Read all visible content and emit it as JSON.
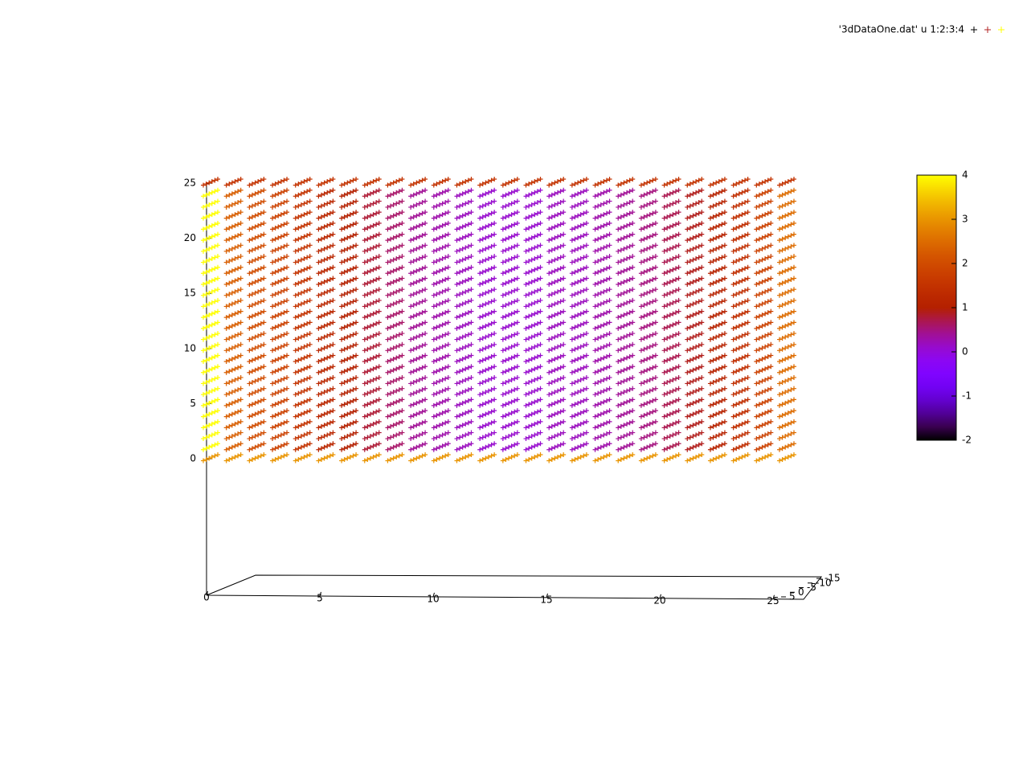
{
  "chart_data": {
    "type": "scatter3d",
    "legend": "'3dDataOne.dat' u 1:2:3:4",
    "legend_colors": [
      "#000000",
      "#b22222",
      "#ffff00"
    ],
    "xlim": [
      0,
      25
    ],
    "xticks": [
      0,
      5,
      10,
      15,
      20,
      25
    ],
    "ylim": [
      5,
      -15
    ],
    "yticks": [
      5,
      0,
      -5,
      -10,
      -15
    ],
    "zlim": [
      0,
      25
    ],
    "zticks": [
      0,
      5,
      10,
      15,
      20,
      25
    ],
    "cblim": [
      -2,
      4
    ],
    "cbticks": [
      -2,
      -1,
      0,
      1,
      2,
      3,
      4
    ],
    "palette": "rgbformulae 7,5,15",
    "values": [
      [
        3,
        3,
        3,
        3,
        3,
        3,
        3,
        3,
        3,
        3,
        3,
        3,
        3,
        3,
        3,
        3,
        3,
        3,
        3,
        3,
        3,
        3,
        3,
        3,
        3,
        3
      ],
      [
        4,
        2.3,
        2,
        1.8,
        1.5,
        1.2,
        1,
        0.8,
        0.6,
        0.4,
        0.3,
        0.2,
        0.1,
        0.1,
        0.1,
        0.2,
        0.2,
        0.3,
        0.4,
        0.5,
        0.7,
        0.9,
        1.1,
        1.4,
        1.8,
        2.5
      ],
      [
        4,
        2.3,
        2,
        1.8,
        1.5,
        1.2,
        1,
        0.8,
        0.6,
        0.4,
        0.3,
        0.2,
        0.1,
        0.1,
        0.1,
        0.2,
        0.2,
        0.3,
        0.4,
        0.5,
        0.7,
        0.9,
        1.1,
        1.4,
        1.8,
        2.5
      ],
      [
        4,
        2.3,
        2,
        1.8,
        1.5,
        1.2,
        1,
        0.8,
        0.6,
        0.4,
        0.3,
        0.2,
        0.1,
        0.1,
        0.1,
        0.2,
        0.2,
        0.3,
        0.4,
        0.5,
        0.7,
        0.9,
        1.1,
        1.4,
        1.8,
        2.5
      ],
      [
        4,
        2.3,
        2,
        1.8,
        1.5,
        1.2,
        1,
        0.8,
        0.6,
        0.4,
        0.3,
        0.2,
        0.1,
        0.1,
        0.1,
        0.2,
        0.2,
        0.3,
        0.4,
        0.5,
        0.7,
        0.9,
        1.1,
        1.4,
        1.8,
        2.5
      ],
      [
        4,
        2.3,
        2,
        1.8,
        1.5,
        1.2,
        1,
        0.8,
        0.6,
        0.4,
        0.3,
        0.2,
        0.1,
        0.1,
        0.1,
        0.2,
        0.2,
        0.3,
        0.4,
        0.5,
        0.7,
        0.9,
        1.1,
        1.4,
        1.8,
        2.5
      ],
      [
        4,
        2.3,
        2,
        1.8,
        1.5,
        1.2,
        1,
        0.8,
        0.6,
        0.4,
        0.3,
        0.2,
        0.1,
        0.1,
        0.1,
        0.2,
        0.2,
        0.3,
        0.4,
        0.5,
        0.7,
        0.9,
        1.1,
        1.4,
        1.8,
        2.5
      ],
      [
        4,
        2.3,
        2,
        1.8,
        1.5,
        1.2,
        1,
        0.8,
        0.6,
        0.4,
        0.3,
        0.2,
        0.1,
        0.1,
        0.1,
        0.2,
        0.2,
        0.3,
        0.4,
        0.5,
        0.7,
        0.9,
        1.1,
        1.4,
        1.8,
        2.5
      ],
      [
        4,
        2.3,
        2,
        1.8,
        1.5,
        1.2,
        1,
        0.8,
        0.6,
        0.4,
        0.3,
        0.2,
        0.1,
        0.1,
        0.1,
        0.2,
        0.2,
        0.3,
        0.4,
        0.5,
        0.7,
        0.9,
        1.1,
        1.4,
        1.8,
        2.5
      ],
      [
        4,
        2.3,
        2,
        1.8,
        1.5,
        1.2,
        1,
        0.8,
        0.6,
        0.4,
        0.3,
        0.2,
        0.1,
        0.1,
        0.1,
        0.2,
        0.2,
        0.3,
        0.4,
        0.5,
        0.7,
        0.9,
        1.1,
        1.4,
        1.8,
        2.5
      ],
      [
        4,
        2.3,
        2,
        1.8,
        1.5,
        1.2,
        1,
        0.8,
        0.6,
        0.4,
        0.3,
        0.2,
        0.1,
        0.1,
        0.1,
        0.2,
        0.2,
        0.3,
        0.4,
        0.5,
        0.7,
        0.9,
        1.1,
        1.4,
        1.8,
        2.5
      ],
      [
        4,
        2.3,
        2,
        1.8,
        1.5,
        1.2,
        1,
        0.8,
        0.6,
        0.4,
        0.3,
        0.2,
        0.1,
        0.1,
        0.1,
        0.2,
        0.2,
        0.3,
        0.4,
        0.5,
        0.7,
        0.9,
        1.1,
        1.4,
        1.8,
        2.5
      ],
      [
        4,
        2.3,
        2,
        1.8,
        1.5,
        1.2,
        1,
        0.8,
        0.6,
        0.4,
        0.3,
        0.2,
        0.1,
        0.1,
        0.1,
        0.2,
        0.2,
        0.3,
        0.4,
        0.5,
        0.7,
        0.9,
        1.1,
        1.4,
        1.8,
        2.5
      ],
      [
        4,
        2.3,
        2,
        1.8,
        1.5,
        1.2,
        1,
        0.8,
        0.6,
        0.4,
        0.3,
        0.2,
        0.1,
        0.1,
        0.1,
        0.2,
        0.2,
        0.3,
        0.4,
        0.5,
        0.7,
        0.9,
        1.1,
        1.4,
        1.8,
        2.5
      ],
      [
        4,
        2.3,
        2,
        1.8,
        1.5,
        1.2,
        1,
        0.8,
        0.6,
        0.4,
        0.3,
        0.2,
        0.1,
        0.1,
        0.1,
        0.2,
        0.2,
        0.3,
        0.4,
        0.5,
        0.7,
        0.9,
        1.1,
        1.4,
        1.8,
        2.5
      ],
      [
        4,
        2.3,
        2,
        1.8,
        1.5,
        1.2,
        1,
        0.8,
        0.6,
        0.4,
        0.3,
        0.2,
        0.1,
        0.1,
        0.1,
        0.2,
        0.2,
        0.3,
        0.4,
        0.5,
        0.7,
        0.9,
        1.1,
        1.4,
        1.8,
        2.5
      ],
      [
        4,
        2.3,
        2,
        1.8,
        1.5,
        1.2,
        1,
        0.8,
        0.6,
        0.4,
        0.3,
        0.2,
        0.1,
        0.1,
        0.1,
        0.2,
        0.2,
        0.3,
        0.4,
        0.5,
        0.7,
        0.9,
        1.1,
        1.4,
        1.8,
        2.5
      ],
      [
        4,
        2.3,
        2,
        1.8,
        1.5,
        1.2,
        1,
        0.8,
        0.6,
        0.4,
        0.3,
        0.2,
        0.1,
        0.1,
        0.1,
        0.2,
        0.2,
        0.3,
        0.4,
        0.5,
        0.7,
        0.9,
        1.1,
        1.4,
        1.8,
        2.5
      ],
      [
        4,
        2.3,
        2,
        1.8,
        1.5,
        1.2,
        1,
        0.8,
        0.6,
        0.4,
        0.3,
        0.2,
        0.1,
        0.1,
        0.1,
        0.2,
        0.2,
        0.3,
        0.4,
        0.5,
        0.7,
        0.9,
        1.1,
        1.4,
        1.8,
        2.5
      ],
      [
        4,
        2.3,
        2,
        1.8,
        1.5,
        1.2,
        1,
        0.8,
        0.6,
        0.4,
        0.3,
        0.2,
        0.1,
        0.1,
        0.1,
        0.2,
        0.2,
        0.3,
        0.4,
        0.5,
        0.7,
        0.9,
        1.1,
        1.4,
        1.8,
        2.5
      ],
      [
        4,
        2.3,
        2,
        1.8,
        1.5,
        1.2,
        1,
        0.8,
        0.6,
        0.4,
        0.3,
        0.2,
        0.1,
        0.1,
        0.1,
        0.2,
        0.2,
        0.3,
        0.4,
        0.5,
        0.7,
        0.9,
        1.1,
        1.4,
        1.8,
        2.5
      ],
      [
        4,
        2.3,
        2,
        1.8,
        1.5,
        1.2,
        1,
        0.8,
        0.6,
        0.4,
        0.3,
        0.2,
        0.1,
        0.1,
        0.1,
        0.2,
        0.2,
        0.3,
        0.4,
        0.5,
        0.7,
        0.9,
        1.1,
        1.4,
        1.8,
        2.5
      ],
      [
        4,
        2.3,
        2,
        1.8,
        1.5,
        1.2,
        1,
        0.8,
        0.6,
        0.4,
        0.3,
        0.2,
        0.1,
        0.1,
        0.1,
        0.2,
        0.2,
        0.3,
        0.4,
        0.5,
        0.7,
        0.9,
        1.1,
        1.4,
        1.8,
        2.5
      ],
      [
        4,
        2.3,
        2,
        1.8,
        1.5,
        1.2,
        1,
        0.8,
        0.6,
        0.4,
        0.3,
        0.2,
        0.1,
        0.1,
        0.1,
        0.2,
        0.2,
        0.3,
        0.4,
        0.5,
        0.7,
        0.9,
        1.1,
        1.4,
        1.8,
        2.5
      ],
      [
        4,
        2.3,
        2,
        1.8,
        1.5,
        1.2,
        1,
        0.8,
        0.6,
        0.4,
        0.3,
        0.2,
        0.1,
        0.1,
        0.1,
        0.2,
        0.2,
        0.3,
        0.4,
        0.5,
        0.7,
        0.9,
        1.1,
        1.4,
        1.8,
        2.5
      ],
      [
        1.5,
        1.5,
        1.5,
        1.5,
        1.5,
        1.5,
        1.5,
        1.5,
        1.5,
        1.5,
        1.5,
        1.5,
        1.5,
        1.5,
        1.5,
        1.5,
        1.5,
        1.5,
        1.5,
        1.5,
        1.5,
        1.5,
        1.5,
        1.5,
        1.5,
        1.5
      ]
    ]
  }
}
